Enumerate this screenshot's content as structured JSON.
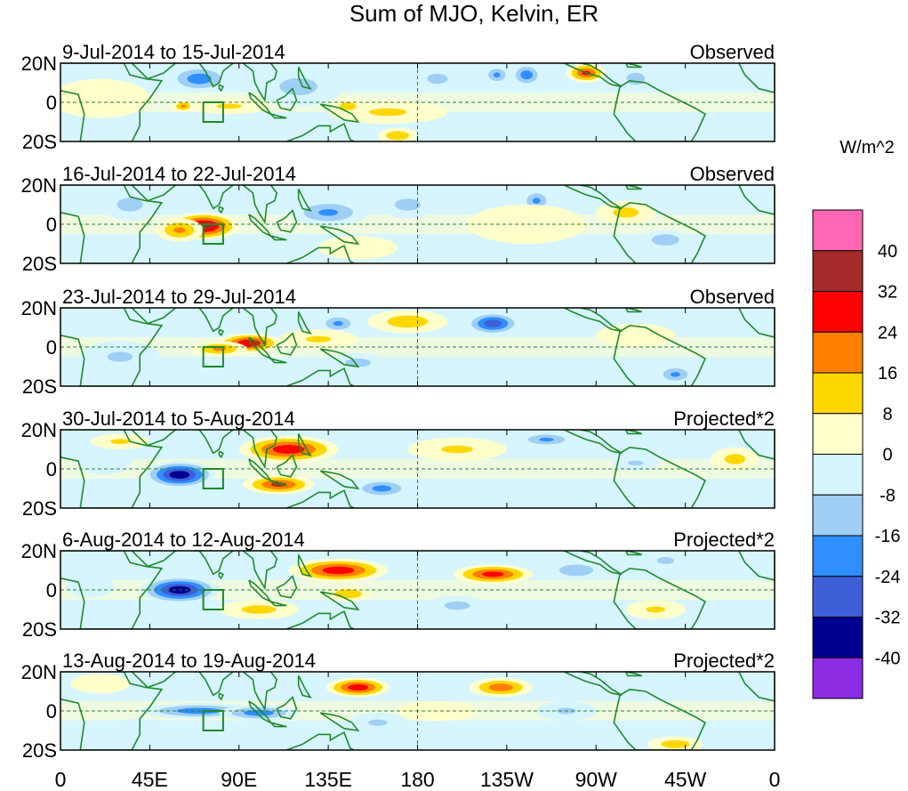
{
  "chart_data": {
    "type": "heatmap",
    "title": "Sum of MJO, Kelvin, ER",
    "units": "W/m^2",
    "lat_tick_labels": [
      "20N",
      "0",
      "20S"
    ],
    "lon_tick_labels": [
      "0",
      "45E",
      "90E",
      "135E",
      "180",
      "135W",
      "90W",
      "45W",
      "0"
    ],
    "lat_range": [
      -20,
      20
    ],
    "lon_range": [
      0,
      360
    ],
    "colorbar": {
      "levels": [
        "40",
        "32",
        "24",
        "16",
        "8",
        "0",
        "-8",
        "-16",
        "-24",
        "-32",
        "-40"
      ],
      "colors": [
        "#ff66b3",
        "#a52a2a",
        "#ff0000",
        "#ff7f00",
        "#ffd700",
        "#ffffcc",
        "#d6f5ff",
        "#9fcff5",
        "#2f8fff",
        "#3f5fd9",
        "#000090",
        "#8b2be2"
      ]
    },
    "region_box": {
      "lon": [
        72,
        82
      ],
      "lat": [
        -10,
        0
      ]
    },
    "panels": [
      {
        "period": "9-Jul-2014 to 15-Jul-2014",
        "status": "Observed",
        "blobs": [
          {
            "lon": 70,
            "lat": 12,
            "value": -22,
            "rlon": 16,
            "rlat": 7
          },
          {
            "lon": 120,
            "lat": 8,
            "value": -12,
            "rlon": 22,
            "rlat": 10
          },
          {
            "lon": 62,
            "lat": -2,
            "value": 18,
            "rlon": 6,
            "rlat": 3
          },
          {
            "lon": 85,
            "lat": -2,
            "value": 10,
            "rlon": 20,
            "rlat": 4
          },
          {
            "lon": 165,
            "lat": -5,
            "value": 10,
            "rlon": 30,
            "rlat": 6
          },
          {
            "lon": 145,
            "lat": -2,
            "value": 14,
            "rlon": 8,
            "rlat": 4
          },
          {
            "lon": 190,
            "lat": 12,
            "value": -12,
            "rlon": 12,
            "rlat": 6
          },
          {
            "lon": 220,
            "lat": 14,
            "value": -18,
            "rlon": 7,
            "rlat": 5
          },
          {
            "lon": 235,
            "lat": 14,
            "value": -22,
            "rlon": 8,
            "rlat": 6
          },
          {
            "lon": 265,
            "lat": 15,
            "value": 26,
            "rlon": 10,
            "rlat": 5
          },
          {
            "lon": 290,
            "lat": 12,
            "value": -14,
            "rlon": 9,
            "rlat": 6
          },
          {
            "lon": 20,
            "lat": 2,
            "value": 6,
            "rlon": 25,
            "rlat": 10
          },
          {
            "lon": 170,
            "lat": -17,
            "value": 16,
            "rlon": 10,
            "rlat": 4
          }
        ]
      },
      {
        "period": "16-Jul-2014 to 22-Jul-2014",
        "status": "Observed",
        "blobs": [
          {
            "lon": 72,
            "lat": -1,
            "value": 36,
            "rlon": 18,
            "rlat": 7
          },
          {
            "lon": 60,
            "lat": -3,
            "value": 18,
            "rlon": 12,
            "rlat": 6
          },
          {
            "lon": 35,
            "lat": 10,
            "value": -12,
            "rlon": 15,
            "rlat": 8
          },
          {
            "lon": 135,
            "lat": 6,
            "value": -18,
            "rlon": 20,
            "rlat": 7
          },
          {
            "lon": 175,
            "lat": 10,
            "value": -12,
            "rlon": 15,
            "rlat": 7
          },
          {
            "lon": 240,
            "lat": 12,
            "value": -18,
            "rlon": 8,
            "rlat": 6
          },
          {
            "lon": 285,
            "lat": 6,
            "value": 12,
            "rlon": 15,
            "rlat": 6
          },
          {
            "lon": 305,
            "lat": -8,
            "value": -16,
            "rlon": 12,
            "rlat": 5
          },
          {
            "lon": 235,
            "lat": 0,
            "value": 8,
            "rlon": 30,
            "rlat": 10
          },
          {
            "lon": 150,
            "lat": -12,
            "value": 6,
            "rlon": 20,
            "rlat": 6
          }
        ]
      },
      {
        "period": "23-Jul-2014 to 29-Jul-2014",
        "status": "Observed",
        "blobs": [
          {
            "lon": 95,
            "lat": 2,
            "value": 32,
            "rlon": 16,
            "rlat": 5
          },
          {
            "lon": 80,
            "lat": -1,
            "value": 18,
            "rlon": 14,
            "rlat": 4
          },
          {
            "lon": 175,
            "lat": 13,
            "value": 14,
            "rlon": 20,
            "rlat": 6
          },
          {
            "lon": 218,
            "lat": 12,
            "value": -30,
            "rlon": 14,
            "rlat": 6
          },
          {
            "lon": 140,
            "lat": 12,
            "value": -18,
            "rlon": 10,
            "rlat": 5
          },
          {
            "lon": 310,
            "lat": -14,
            "value": -18,
            "rlon": 10,
            "rlat": 5
          },
          {
            "lon": 30,
            "lat": -5,
            "value": -10,
            "rlon": 20,
            "rlat": 8
          },
          {
            "lon": 150,
            "lat": -8,
            "value": -12,
            "rlon": 15,
            "rlat": 5
          },
          {
            "lon": 130,
            "lat": 4,
            "value": 10,
            "rlon": 20,
            "rlat": 5
          },
          {
            "lon": 290,
            "lat": 6,
            "value": 8,
            "rlon": 20,
            "rlat": 6
          }
        ]
      },
      {
        "period": "30-Jul-2014 to 5-Aug-2014",
        "status": "Projected*2",
        "blobs": [
          {
            "lon": 60,
            "lat": -3,
            "value": -38,
            "rlon": 18,
            "rlat": 7
          },
          {
            "lon": 115,
            "lat": 10,
            "value": 30,
            "rlon": 25,
            "rlat": 7
          },
          {
            "lon": 110,
            "lat": -8,
            "value": 26,
            "rlon": 18,
            "rlat": 5
          },
          {
            "lon": 162,
            "lat": -10,
            "value": -20,
            "rlon": 15,
            "rlat": 5
          },
          {
            "lon": 245,
            "lat": 15,
            "value": -18,
            "rlon": 15,
            "rlat": 4
          },
          {
            "lon": 290,
            "lat": 3,
            "value": -10,
            "rlon": 12,
            "rlat": 4
          },
          {
            "lon": 340,
            "lat": 5,
            "value": 12,
            "rlon": 12,
            "rlat": 6
          },
          {
            "lon": 22,
            "lat": 5,
            "value": -8,
            "rlon": 14,
            "rlat": 8
          },
          {
            "lon": 200,
            "lat": 10,
            "value": 10,
            "rlon": 25,
            "rlat": 6
          },
          {
            "lon": 30,
            "lat": 14,
            "value": 10,
            "rlon": 15,
            "rlat": 4
          }
        ]
      },
      {
        "period": "6-Aug-2014 to 12-Aug-2014",
        "status": "Projected*2",
        "blobs": [
          {
            "lon": 60,
            "lat": 0,
            "value": -38,
            "rlon": 20,
            "rlat": 7
          },
          {
            "lon": 140,
            "lat": 10,
            "value": 30,
            "rlon": 25,
            "rlat": 6
          },
          {
            "lon": 218,
            "lat": 8,
            "value": 28,
            "rlon": 20,
            "rlat": 5
          },
          {
            "lon": 145,
            "lat": -2,
            "value": 16,
            "rlon": 12,
            "rlat": 4
          },
          {
            "lon": 100,
            "lat": -10,
            "value": 12,
            "rlon": 20,
            "rlat": 5
          },
          {
            "lon": 260,
            "lat": 10,
            "value": -16,
            "rlon": 15,
            "rlat": 5
          },
          {
            "lon": 200,
            "lat": -8,
            "value": -12,
            "rlon": 15,
            "rlat": 5
          },
          {
            "lon": 300,
            "lat": -10,
            "value": 10,
            "rlon": 15,
            "rlat": 5
          },
          {
            "lon": 15,
            "lat": 2,
            "value": -8,
            "rlon": 12,
            "rlat": 6
          },
          {
            "lon": 305,
            "lat": 15,
            "value": -12,
            "rlon": 10,
            "rlat": 4
          }
        ]
      },
      {
        "period": "13-Aug-2014 to 19-Aug-2014",
        "status": "Projected*2",
        "blobs": [
          {
            "lon": 70,
            "lat": 0,
            "value": -22,
            "rlon": 30,
            "rlat": 4
          },
          {
            "lon": 100,
            "lat": -1,
            "value": -22,
            "rlon": 20,
            "rlat": 4
          },
          {
            "lon": 150,
            "lat": 12,
            "value": 30,
            "rlon": 16,
            "rlat": 5
          },
          {
            "lon": 222,
            "lat": 12,
            "value": 22,
            "rlon": 16,
            "rlat": 5
          },
          {
            "lon": 310,
            "lat": -17,
            "value": 14,
            "rlon": 14,
            "rlat": 4
          },
          {
            "lon": 160,
            "lat": -6,
            "value": -10,
            "rlon": 15,
            "rlat": 5
          },
          {
            "lon": 255,
            "lat": 0,
            "value": -10,
            "rlon": 15,
            "rlat": 5
          },
          {
            "lon": 40,
            "lat": -10,
            "value": -8,
            "rlon": 15,
            "rlat": 6
          },
          {
            "lon": 20,
            "lat": 14,
            "value": 6,
            "rlon": 15,
            "rlat": 5
          },
          {
            "lon": 190,
            "lat": 0,
            "value": 6,
            "rlon": 20,
            "rlat": 5
          }
        ]
      }
    ]
  }
}
